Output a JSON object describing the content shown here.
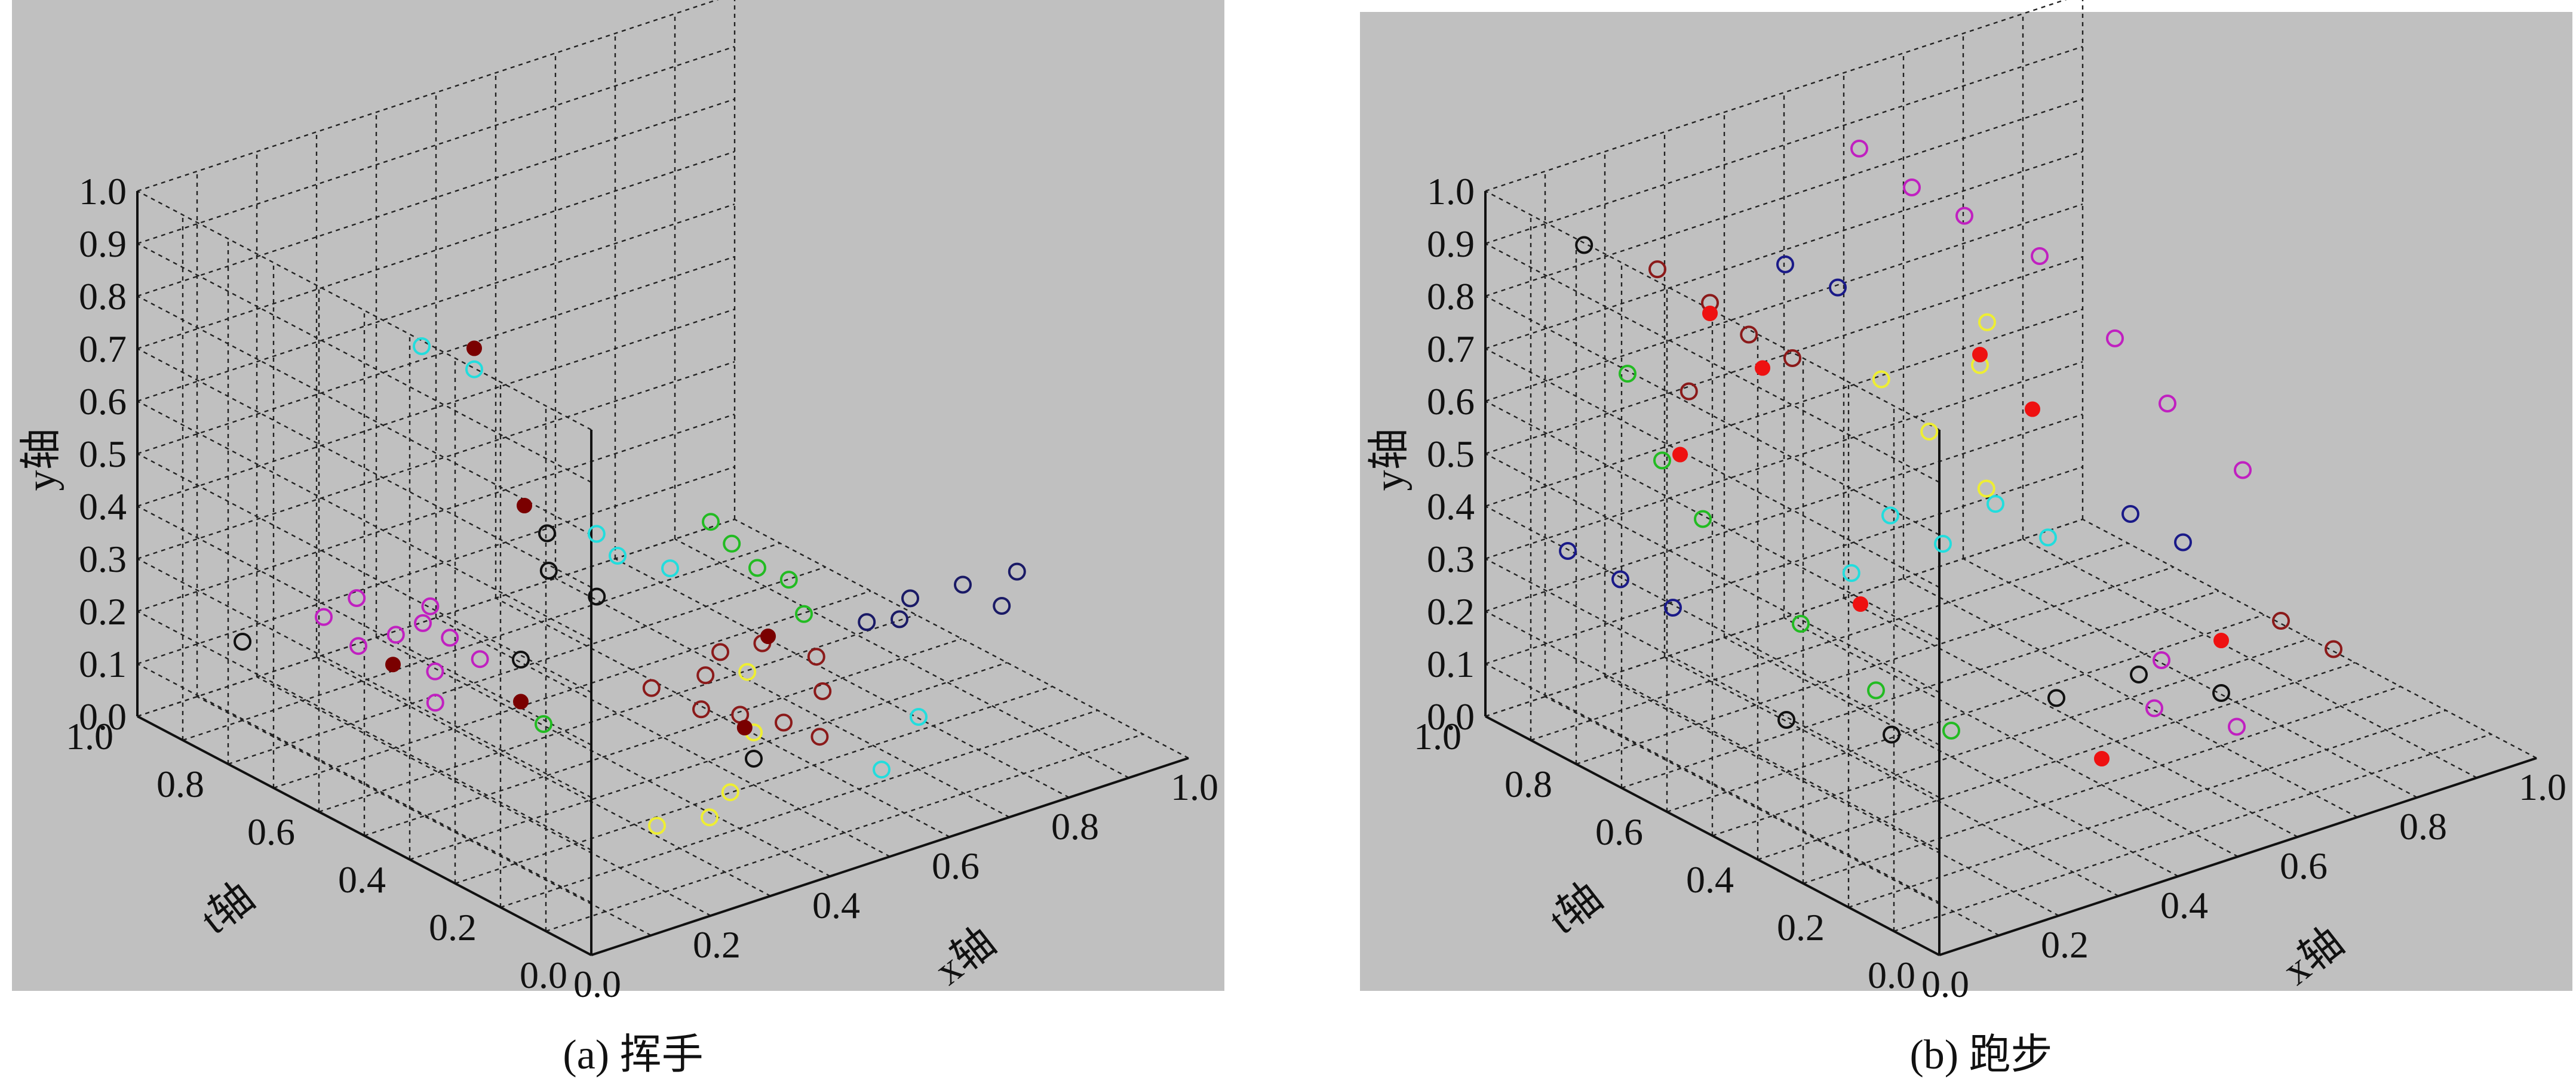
{
  "chart_data": [
    {
      "type": "scatter",
      "caption": "(a) 挥手",
      "xlabel": "x轴",
      "ylabel": "y轴",
      "tlabel": "t轴",
      "xlim": [
        0,
        1
      ],
      "ylim": [
        0,
        1
      ],
      "tlim": [
        0,
        1
      ],
      "y_ticks": [
        "0.0",
        "0.1",
        "0.2",
        "0.3",
        "0.4",
        "0.5",
        "0.6",
        "0.7",
        "0.8",
        "0.9",
        "1.0"
      ],
      "x_ticks": [
        "0.0",
        "0.2",
        "0.4",
        "0.6",
        "0.8",
        "1.0"
      ],
      "t_ticks": [
        "0.0",
        "0.2",
        "0.4",
        "0.6",
        "0.8",
        "1.0"
      ],
      "grid": true,
      "series": [
        {
          "color": "#c020c0",
          "marker": "open-circle",
          "points": [
            [
              0.18,
              0.18,
              0.75
            ],
            [
              0.22,
              0.2,
              0.72
            ],
            [
              0.25,
              0.22,
              0.7
            ],
            [
              0.28,
              0.19,
              0.68
            ],
            [
              0.2,
              0.25,
              0.78
            ],
            [
              0.24,
              0.15,
              0.66
            ],
            [
              0.3,
              0.16,
              0.64
            ],
            [
              0.16,
              0.22,
              0.8
            ],
            [
              0.27,
              0.24,
              0.71
            ],
            [
              0.21,
              0.12,
              0.62
            ]
          ]
        },
        {
          "color": "#8b1a1a",
          "marker": "open-circle",
          "points": [
            [
              0.45,
              0.14,
              0.35
            ],
            [
              0.5,
              0.12,
              0.33
            ],
            [
              0.55,
              0.1,
              0.3
            ],
            [
              0.48,
              0.18,
              0.38
            ],
            [
              0.6,
              0.15,
              0.28
            ],
            [
              0.52,
              0.2,
              0.4
            ],
            [
              0.58,
              0.08,
              0.26
            ],
            [
              0.42,
              0.16,
              0.42
            ],
            [
              0.62,
              0.19,
              0.32
            ],
            [
              0.56,
              0.22,
              0.36
            ]
          ]
        },
        {
          "color": "#1a1a66",
          "marker": "open-circle",
          "points": [
            [
              0.8,
              0.22,
              0.35
            ],
            [
              0.85,
              0.25,
              0.3
            ],
            [
              0.9,
              0.2,
              0.28
            ],
            [
              0.75,
              0.18,
              0.38
            ],
            [
              0.88,
              0.3,
              0.22
            ],
            [
              0.82,
              0.15,
              0.4
            ]
          ]
        },
        {
          "color": "#22bb22",
          "marker": "open-circle",
          "points": [
            [
              0.62,
              0.3,
              0.45
            ],
            [
              0.65,
              0.28,
              0.42
            ],
            [
              0.6,
              0.34,
              0.48
            ],
            [
              0.58,
              0.38,
              0.5
            ],
            [
              0.66,
              0.22,
              0.4
            ],
            [
              0.3,
              0.1,
              0.5
            ]
          ]
        },
        {
          "color": "#22dddd",
          "marker": "open-circle",
          "points": [
            [
              0.4,
              0.6,
              0.9
            ],
            [
              0.45,
              0.56,
              0.85
            ],
            [
              0.5,
              0.3,
              0.6
            ],
            [
              0.55,
              0.28,
              0.55
            ],
            [
              0.48,
              0.34,
              0.62
            ],
            [
              0.7,
              0.1,
              0.2
            ],
            [
              0.6,
              0.06,
              0.15
            ]
          ]
        },
        {
          "color": "#111111",
          "marker": "open-circle",
          "points": [
            [
              0.4,
              0.3,
              0.62
            ],
            [
              0.45,
              0.25,
              0.58
            ],
            [
              0.42,
              0.35,
              0.65
            ],
            [
              0.1,
              0.15,
              0.9
            ],
            [
              0.3,
              0.2,
              0.55
            ],
            [
              0.5,
              0.05,
              0.3
            ]
          ]
        },
        {
          "color": "#eeee33",
          "marker": "open-circle",
          "points": [
            [
              0.3,
              0.02,
              0.25
            ],
            [
              0.35,
              0.04,
              0.2
            ],
            [
              0.4,
              0.06,
              0.22
            ],
            [
              0.5,
              0.1,
              0.3
            ],
            [
              0.55,
              0.16,
              0.38
            ]
          ]
        },
        {
          "color": "#7a0000",
          "marker": "filled-circle",
          "points": [
            [
              0.2,
              0.16,
              0.7
            ],
            [
              0.3,
              0.12,
              0.55
            ],
            [
              0.5,
              0.1,
              0.32
            ],
            [
              0.45,
              0.6,
              0.85
            ],
            [
              0.42,
              0.38,
              0.7
            ],
            [
              0.6,
              0.2,
              0.4
            ]
          ]
        }
      ]
    },
    {
      "type": "scatter",
      "caption": "(b) 跑步",
      "xlabel": "x轴",
      "ylabel": "y轴",
      "tlabel": "t轴",
      "xlim": [
        0,
        1
      ],
      "ylim": [
        0,
        1
      ],
      "tlim": [
        0,
        1
      ],
      "y_ticks": [
        "0.0",
        "0.1",
        "0.2",
        "0.3",
        "0.4",
        "0.5",
        "0.6",
        "0.7",
        "0.8",
        "0.9",
        "1.0"
      ],
      "x_ticks": [
        "0.0",
        "0.2",
        "0.4",
        "0.6",
        "0.8",
        "1.0"
      ],
      "t_ticks": [
        "0.0",
        "0.2",
        "0.4",
        "0.6",
        "0.8",
        "1.0"
      ],
      "grid": true,
      "series": [
        {
          "color": "#c020c0",
          "marker": "open-circle",
          "points": [
            [
              0.55,
              0.92,
              0.9
            ],
            [
              0.6,
              0.85,
              0.85
            ],
            [
              0.65,
              0.8,
              0.8
            ],
            [
              0.7,
              0.75,
              0.7
            ],
            [
              0.75,
              0.62,
              0.6
            ],
            [
              0.8,
              0.5,
              0.55
            ],
            [
              0.85,
              0.4,
              0.45
            ],
            [
              0.6,
              0.2,
              0.3
            ],
            [
              0.55,
              0.15,
              0.25
            ],
            [
              0.65,
              0.1,
              0.2
            ]
          ]
        },
        {
          "color": "#8b1a1a",
          "marker": "open-circle",
          "points": [
            [
              0.25,
              0.78,
              0.95
            ],
            [
              0.3,
              0.72,
              0.9
            ],
            [
              0.35,
              0.65,
              0.88
            ],
            [
              0.4,
              0.6,
              0.85
            ],
            [
              0.28,
              0.55,
              0.92
            ],
            [
              0.8,
              0.2,
              0.3
            ],
            [
              0.85,
              0.15,
              0.25
            ]
          ]
        },
        {
          "color": "#1a1a88",
          "marker": "open-circle",
          "points": [
            [
              0.35,
              0.82,
              0.8
            ],
            [
              0.4,
              0.78,
              0.75
            ],
            [
              0.1,
              0.3,
              0.95
            ],
            [
              0.15,
              0.25,
              0.9
            ],
            [
              0.2,
              0.2,
              0.85
            ],
            [
              0.7,
              0.35,
              0.5
            ],
            [
              0.75,
              0.3,
              0.45
            ]
          ]
        },
        {
          "color": "#22bb22",
          "marker": "open-circle",
          "points": [
            [
              0.2,
              0.6,
              0.95
            ],
            [
              0.22,
              0.45,
              0.9
            ],
            [
              0.25,
              0.35,
              0.85
            ],
            [
              0.3,
              0.2,
              0.7
            ],
            [
              0.35,
              0.1,
              0.6
            ],
            [
              0.4,
              0.05,
              0.5
            ]
          ]
        },
        {
          "color": "#22dddd",
          "marker": "open-circle",
          "points": [
            [
              0.45,
              0.35,
              0.7
            ],
            [
              0.5,
              0.3,
              0.65
            ],
            [
              0.55,
              0.38,
              0.6
            ],
            [
              0.6,
              0.32,
              0.55
            ],
            [
              0.4,
              0.25,
              0.72
            ]
          ]
        },
        {
          "color": "#eeee33",
          "marker": "open-circle",
          "points": [
            [
              0.45,
              0.6,
              0.72
            ],
            [
              0.5,
              0.5,
              0.68
            ],
            [
              0.55,
              0.4,
              0.62
            ],
            [
              0.6,
              0.58,
              0.7
            ],
            [
              0.65,
              0.62,
              0.75
            ]
          ]
        },
        {
          "color": "#111111",
          "marker": "open-circle",
          "points": [
            [
              0.2,
              0.1,
              0.6
            ],
            [
              0.3,
              0.08,
              0.5
            ],
            [
              0.5,
              0.12,
              0.4
            ],
            [
              0.6,
              0.15,
              0.35
            ],
            [
              0.7,
              0.1,
              0.3
            ],
            [
              0.15,
              0.85,
              0.98
            ]
          ]
        },
        {
          "color": "#ee1111",
          "marker": "filled-circle",
          "points": [
            [
              0.3,
              0.7,
              0.9
            ],
            [
              0.35,
              0.6,
              0.85
            ],
            [
              0.25,
              0.45,
              0.9
            ],
            [
              0.6,
              0.6,
              0.7
            ],
            [
              0.65,
              0.5,
              0.65
            ],
            [
              0.7,
              0.2,
              0.3
            ],
            [
              0.4,
              0.2,
              0.7
            ],
            [
              0.5,
              0.05,
              0.3
            ]
          ]
        }
      ]
    }
  ]
}
